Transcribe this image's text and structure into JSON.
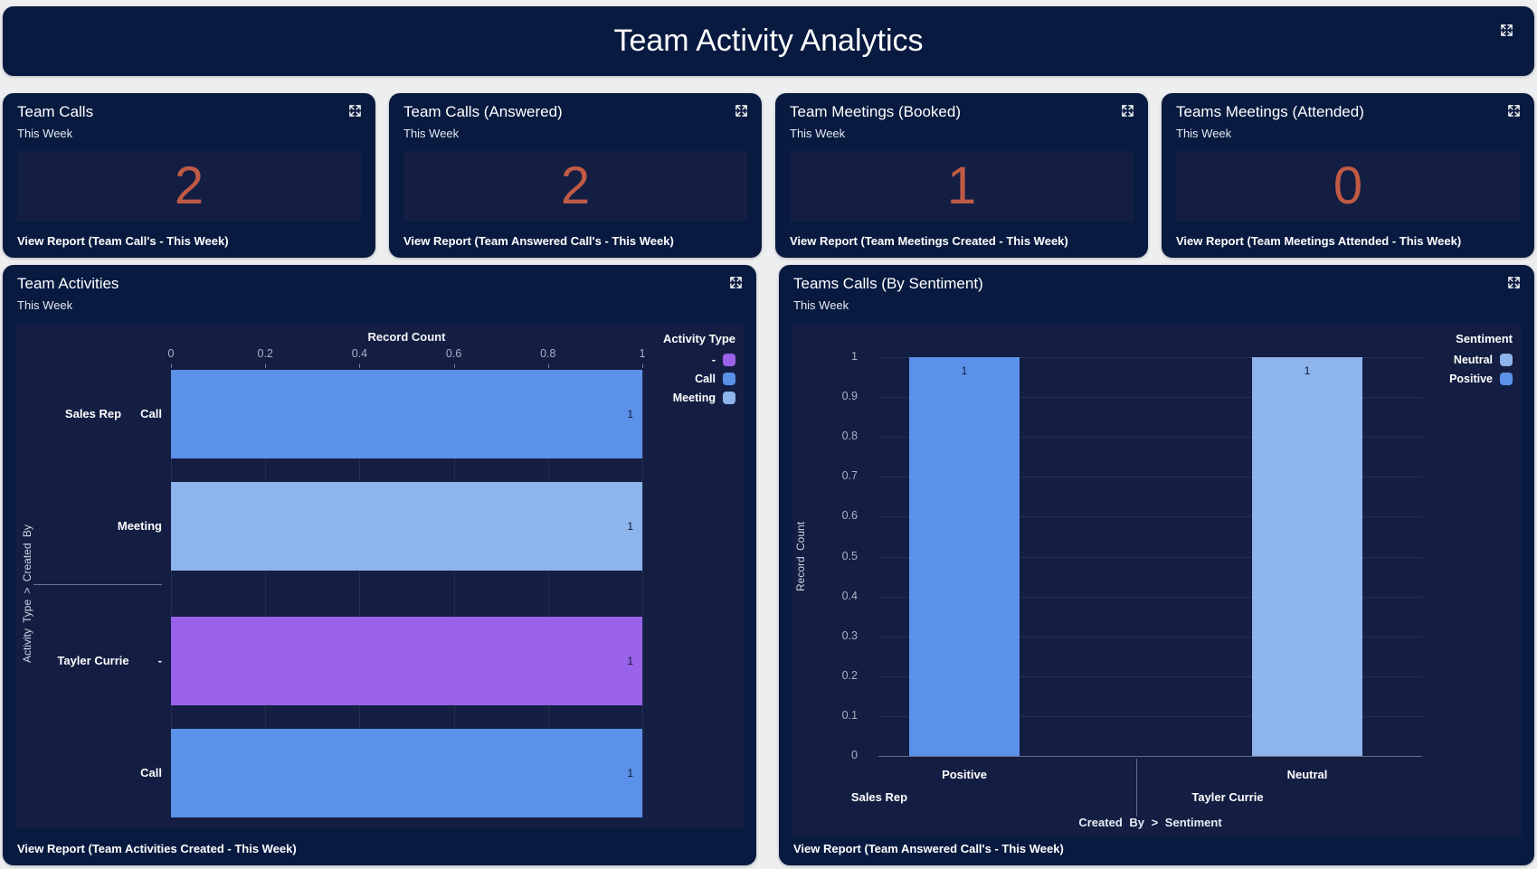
{
  "header": {
    "title": "Team Activity Analytics"
  },
  "icons": {
    "expand": "expand-arrows-icon"
  },
  "colors": {
    "page_bg": "#eceef0",
    "card_bg": "#081a40",
    "panel_bg": "#131e42",
    "accent_number": "#c05a45",
    "bar_blue": "#5c91e9",
    "bar_light_blue": "#8db4eb",
    "bar_purple": "#9a61e9"
  },
  "kpi_cards": [
    {
      "title": "Team Calls",
      "subtitle": "This Week",
      "value": "2",
      "footer": "View Report (Team Call's - This Week)"
    },
    {
      "title": "Team Calls (Answered)",
      "subtitle": "This Week",
      "value": "2",
      "footer": "View Report (Team Answered Call's - This Week)"
    },
    {
      "title": "Team Meetings (Booked)",
      "subtitle": "This Week",
      "value": "1",
      "footer": "View Report (Team Meetings Created - This Week)"
    },
    {
      "title": "Teams Meetings (Attended)",
      "subtitle": "This Week",
      "value": "0",
      "footer": "View Report (Team Meetings Attended - This Week)"
    }
  ],
  "chart_data": [
    {
      "type": "bar",
      "orientation": "horizontal",
      "title": "Team Activities",
      "subtitle": "This Week",
      "value_axis_label": "Record Count",
      "category_axis_label": "Activity Type > Created By",
      "xlim": [
        0,
        1
      ],
      "x_ticks": [
        0,
        0.2,
        0.4,
        0.6,
        0.8,
        1
      ],
      "grid": true,
      "legend_position": "top-right",
      "legend_title": "Activity Type",
      "legend": [
        {
          "label": "-",
          "color": "#9a61e9"
        },
        {
          "label": "Call",
          "color": "#5c91e9"
        },
        {
          "label": "Meeting",
          "color": "#8db4eb"
        }
      ],
      "groups": [
        {
          "group": "Sales Rep",
          "rows": [
            {
              "label": "Call",
              "value": 1,
              "color": "#5c91e9"
            },
            {
              "label": "Meeting",
              "value": 1,
              "color": "#8db4eb"
            }
          ]
        },
        {
          "group": "Tayler Currie",
          "rows": [
            {
              "label": "-",
              "value": 1,
              "color": "#9a61e9"
            },
            {
              "label": "Call",
              "value": 1,
              "color": "#5c91e9"
            }
          ]
        }
      ],
      "footer": "View Report (Team Activities Created - This Week)"
    },
    {
      "type": "bar",
      "orientation": "vertical",
      "title": "Teams Calls (By Sentiment)",
      "subtitle": "This Week",
      "ylabel": "Record Count",
      "xlabel": "Created By > Sentiment",
      "ylim": [
        0,
        1
      ],
      "y_ticks": [
        0,
        0.1,
        0.2,
        0.3,
        0.4,
        0.5,
        0.6,
        0.7,
        0.8,
        0.9,
        1
      ],
      "grid": true,
      "legend_position": "top-right",
      "legend_title": "Sentiment",
      "legend": [
        {
          "label": "Neutral",
          "color": "#8db4eb"
        },
        {
          "label": "Positive",
          "color": "#5c91e9"
        }
      ],
      "groups": [
        {
          "group": "Sales Rep",
          "bars": [
            {
              "label": "Positive",
              "value": 1,
              "color": "#5c91e9"
            }
          ]
        },
        {
          "group": "Tayler Currie",
          "bars": [
            {
              "label": "Neutral",
              "value": 1,
              "color": "#8db4eb"
            }
          ]
        }
      ],
      "footer": "View Report (Team Answered Call's - This Week)"
    }
  ]
}
